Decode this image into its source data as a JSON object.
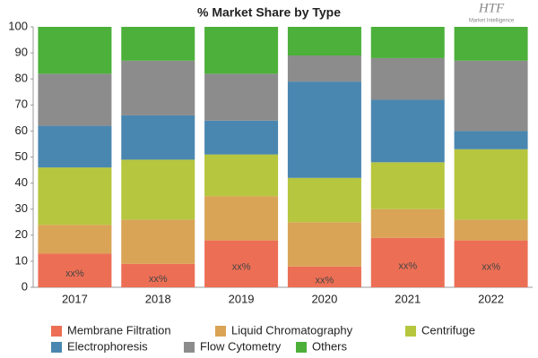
{
  "chart_data": {
    "type": "stacked_bar",
    "title": "% Market Share by Type",
    "logo": {
      "name": "HTF",
      "tagline": "Market Intelligence"
    },
    "categories": [
      "2017",
      "2018",
      "2019",
      "2020",
      "2021",
      "2022"
    ],
    "series": [
      {
        "name": "Membrane Filtration",
        "color": "#ec6f55",
        "values": [
          13,
          9,
          18,
          8,
          19,
          18
        ],
        "value_labels": [
          "xx%",
          "xx%",
          "xx%",
          "xx%",
          "xx%",
          "xx%"
        ]
      },
      {
        "name": "Liquid Chromatography",
        "color": "#d9a456",
        "values": [
          11,
          17,
          17,
          17,
          11,
          8
        ]
      },
      {
        "name": "Centrifuge",
        "color": "#b6c63e",
        "values": [
          22,
          23,
          16,
          17,
          18,
          27
        ]
      },
      {
        "name": "Electrophoresis",
        "color": "#4a87b0",
        "values": [
          16,
          17,
          13,
          37,
          24,
          7
        ]
      },
      {
        "name": "Flow Cytometry",
        "color": "#8c8c8c",
        "values": [
          20,
          21,
          18,
          10,
          16,
          27
        ]
      },
      {
        "name": "Others",
        "color": "#4cb03a",
        "values": [
          18,
          13,
          18,
          11,
          12,
          13
        ]
      }
    ],
    "ylim": [
      0,
      100
    ],
    "yticks": [
      0,
      10,
      20,
      30,
      40,
      50,
      60,
      70,
      80,
      90,
      100
    ],
    "grid": false
  }
}
